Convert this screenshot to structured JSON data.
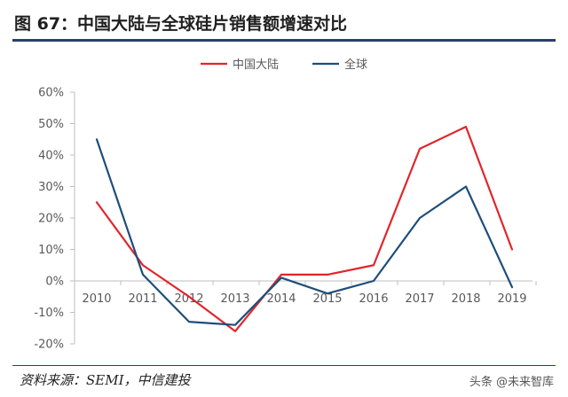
{
  "header": {
    "title": "图 67：中国大陆与全球硅片销售额增速对比"
  },
  "footer": {
    "source": "资料来源：SEMI，中信建投",
    "watermark": "头条 @未来智库"
  },
  "chart_data": {
    "type": "line",
    "title": "",
    "xlabel": "",
    "ylabel": "",
    "x": [
      "2010",
      "2011",
      "2012",
      "2013",
      "2014",
      "2015",
      "2016",
      "2017",
      "2018",
      "2019"
    ],
    "ylim": [
      -20,
      60
    ],
    "ytick_values": [
      -20,
      -10,
      0,
      10,
      20,
      30,
      40,
      50,
      60
    ],
    "ytick_labels": [
      "-20%",
      "-10%",
      "0%",
      "10%",
      "20%",
      "30%",
      "40%",
      "50%",
      "60%"
    ],
    "grid": false,
    "legend_position": "top",
    "series": [
      {
        "name": "中国大陆",
        "color": "#e0262b",
        "values": [
          25,
          5,
          -5,
          -16,
          2,
          2,
          5,
          42,
          49,
          10
        ]
      },
      {
        "name": "全球",
        "color": "#1f4e79",
        "values": [
          45,
          2,
          -13,
          -14,
          1,
          -4,
          0,
          20,
          30,
          -2
        ]
      }
    ]
  }
}
